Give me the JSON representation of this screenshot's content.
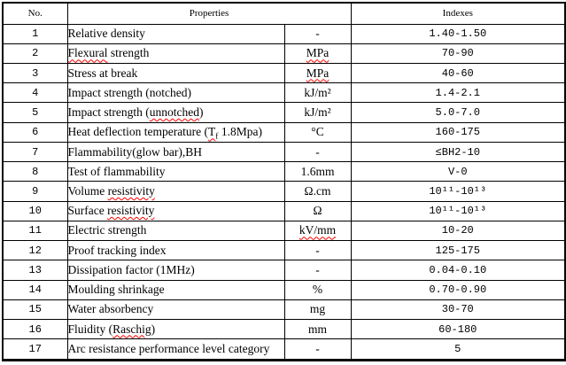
{
  "table": {
    "headers": {
      "no": "No.",
      "properties": "Properties",
      "indexes": "Indexes"
    },
    "rows": [
      {
        "no": "1",
        "property": "Relative density",
        "unit": "-",
        "index": "1.40-1.50"
      },
      {
        "no": "2",
        "property": "~Flexural~ strength",
        "unit": "~MPa~",
        "index": "70-90"
      },
      {
        "no": "3",
        "property": "Stress at break",
        "unit": "~MPa~",
        "index": "40-60"
      },
      {
        "no": "4",
        "property": "Impact strength (notched)",
        "unit": "kJ/m²",
        "index": "1.4-2.1"
      },
      {
        "no": "5",
        "property": "Impact strength (~unnotched~)",
        "unit": "kJ/m²",
        "index": "5.0-7.0"
      },
      {
        "no": "6",
        "property": "Heat deflection temperature (~T_f_~ 1.8Mpa)",
        "unit": "°C",
        "index": "160-175"
      },
      {
        "no": "7",
        "property": "Flammability(glow bar),BH",
        "unit": "-",
        "index": "≤BH2-10"
      },
      {
        "no": "8",
        "property": "Test of flammability",
        "unit": "1.6mm",
        "index": "V-0"
      },
      {
        "no": "9",
        "property": "Volume ~resistivity~",
        "unit": "Ω.cm",
        "index": "10¹¹-10¹³"
      },
      {
        "no": "10",
        "property": "Surface ~resistivity~",
        "unit": "Ω",
        "index": "10¹¹-10¹³"
      },
      {
        "no": "11",
        "property": "Electric strength",
        "unit": "~kV/mm~",
        "index": "10-20"
      },
      {
        "no": "12",
        "property": "Proof tracking index",
        "unit": "-",
        "index": "125-175"
      },
      {
        "no": "13",
        "property": "Dissipation factor (1MHz)",
        "unit": "-",
        "index": "0.04-0.10"
      },
      {
        "no": "14",
        "property": "Moulding shrinkage",
        "unit": "%",
        "index": "0.70-0.90"
      },
      {
        "no": "15",
        "property": "Water absorbency",
        "unit": "mg",
        "index": "30-70"
      },
      {
        "no": "16",
        "property": "Fluidity (~Raschig~)",
        "unit": "mm",
        "index": "60-180"
      },
      {
        "no": "17",
        "property": "Arc resistance performance level category",
        "unit": "-",
        "index": "5"
      }
    ]
  },
  "colors": {
    "text": "#000000",
    "border": "#000000",
    "background": "#ffffff",
    "spellcheck_squiggle": "#ff0000"
  }
}
